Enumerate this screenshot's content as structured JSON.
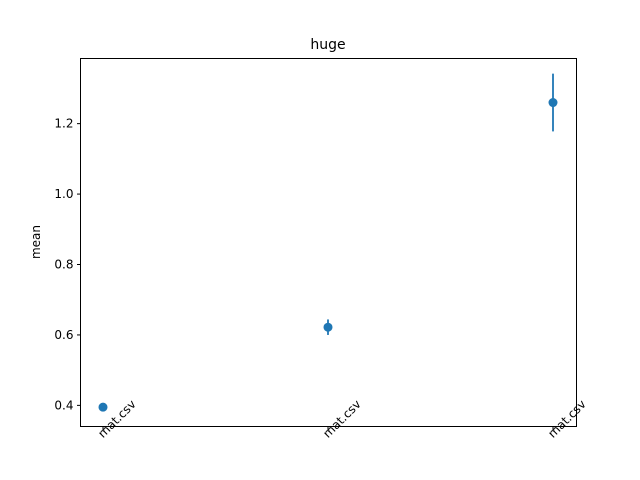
{
  "chart_data": {
    "type": "scatter",
    "title": "huge",
    "xlabel": "",
    "ylabel": "mean",
    "categories": [
      "mat.csv",
      "mat.csv",
      "mat.csv"
    ],
    "series": [
      {
        "values": [
          0.395,
          0.622,
          1.26
        ],
        "errors": [
          0.005,
          0.022,
          0.082
        ],
        "color": "#1f77b4"
      }
    ],
    "ylim": [
      0.34,
      1.385
    ],
    "yticks": [
      0.4,
      0.6,
      0.8,
      1.0,
      1.2
    ],
    "ytick_labels": [
      "0.4",
      "0.6",
      "0.8",
      "1.0",
      "1.2"
    ],
    "grid": false,
    "x_tick_rotation": 45
  }
}
